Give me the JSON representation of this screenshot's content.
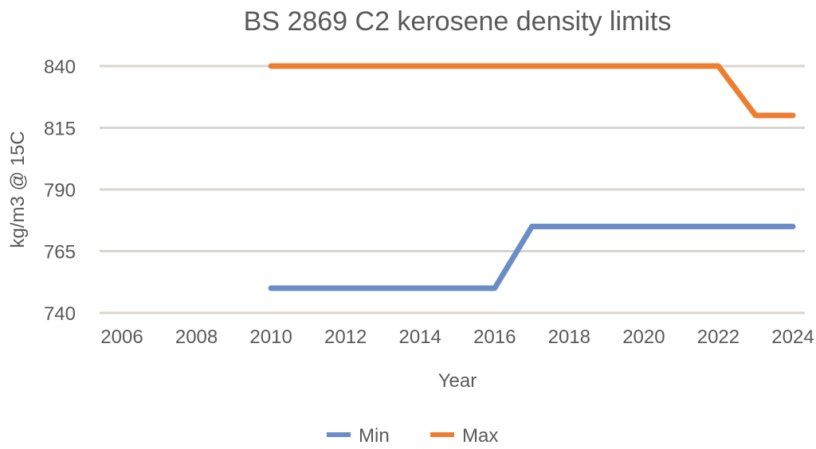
{
  "chart_data": {
    "type": "line",
    "title": "BS 2869 C2 kerosene density limits",
    "xlabel": "Year",
    "ylabel": "kg/m3 @ 15C",
    "xlim": [
      2006,
      2024
    ],
    "ylim": [
      740,
      840
    ],
    "x_ticks": [
      "2006",
      "2008",
      "2010",
      "2012",
      "2014",
      "2016",
      "2018",
      "2020",
      "2022",
      "2024"
    ],
    "y_ticks": [
      "740",
      "765",
      "790",
      "815",
      "840"
    ],
    "grid": true,
    "legend_position": "bottom",
    "series": [
      {
        "name": "Min",
        "color": "#6A8DC6",
        "x": [
          2010,
          2016,
          2017,
          2024
        ],
        "y": [
          750,
          750,
          775,
          775
        ]
      },
      {
        "name": "Max",
        "color": "#ED7D31",
        "x": [
          2010,
          2022,
          2023,
          2024
        ],
        "y": [
          840,
          840,
          820,
          820
        ]
      }
    ]
  }
}
